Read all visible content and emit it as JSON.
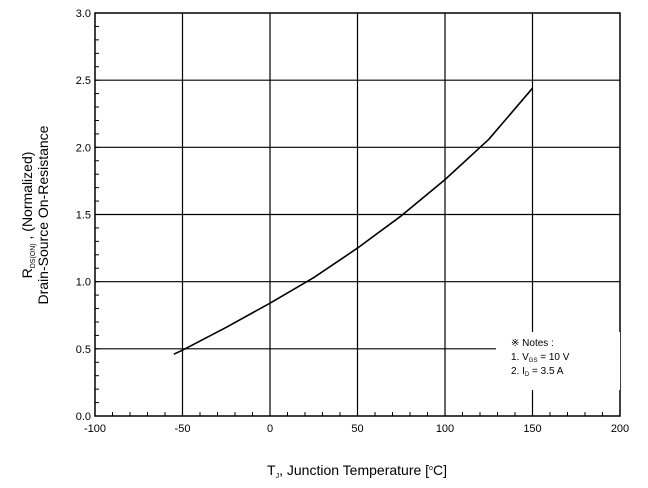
{
  "chart_data": {
    "type": "line",
    "xlabel": {
      "main": "T",
      "sub": "J",
      "rest": ", Junction Temperature [",
      "sup": "o",
      "end": "C]"
    },
    "ylabel": {
      "line1_main": "R",
      "line1_sub": "DS(ON)",
      "line1_rest": " , (Normalized)",
      "line2": "Drain-Source On-Resistance"
    },
    "xlim": [
      -100,
      200
    ],
    "ylim": [
      0.0,
      3.0
    ],
    "xticks": [
      "-100",
      "-50",
      "0",
      "50",
      "100",
      "150",
      "200"
    ],
    "yticks": [
      "0.0",
      "0.5",
      "1.0",
      "1.5",
      "2.0",
      "2.5",
      "3.0"
    ],
    "grid": true,
    "series": [
      {
        "x": [
          -55,
          -50,
          -25,
          0,
          25,
          50,
          75,
          100,
          125,
          150
        ],
        "y": [
          0.46,
          0.49,
          0.66,
          0.84,
          1.03,
          1.25,
          1.49,
          1.76,
          2.06,
          2.44
        ]
      }
    ],
    "notes": {
      "title": "※ Notes :",
      "line1_pre": "1. V",
      "line1_sub": "GS",
      "line1_post": " = 10 V",
      "line2_pre": "2. I",
      "line2_sub": "D",
      "line2_post": " = 3.5 A"
    }
  }
}
